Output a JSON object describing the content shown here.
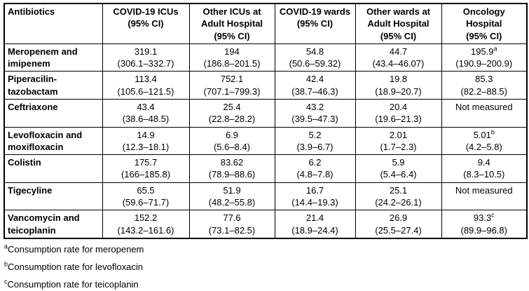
{
  "table": {
    "headers": [
      {
        "label": "Antibiotics",
        "sub": ""
      },
      {
        "label": "COVID-19 ICUs",
        "sub": "(95% CI)"
      },
      {
        "label": "Other ICUs at Adult Hospital",
        "sub": "(95% CI)"
      },
      {
        "label": "COVID-19 wards",
        "sub": "(95% CI)"
      },
      {
        "label": "Other wards at Adult Hospital",
        "sub": "(95% CI)"
      },
      {
        "label": "Oncology Hospital",
        "sub": "(95% CI)"
      }
    ],
    "rows": [
      {
        "name": "Meropenem and imipenem",
        "cells": [
          {
            "value": "319.1",
            "ci": "(306.1–332.7)"
          },
          {
            "value": "194",
            "ci": "(186.8–201.5)"
          },
          {
            "value": "54.8",
            "ci": "(50.6–59.32)"
          },
          {
            "value": "44.7",
            "ci": "(43.4–46.07)"
          },
          {
            "value": "195.9",
            "sup": "a",
            "ci": "(190.9–200.9)"
          }
        ]
      },
      {
        "name": "Piperacilin-tazobactam",
        "cells": [
          {
            "value": "113.4",
            "ci": "(105.6–121.5)"
          },
          {
            "value": "752.1",
            "ci": "(707.1–799.3)"
          },
          {
            "value": "42.4",
            "ci": "(38.7–46.3)"
          },
          {
            "value": "19.8",
            "ci": "(18.9–20.7)"
          },
          {
            "value": "85.3",
            "ci": "(82.2–88.5)"
          }
        ]
      },
      {
        "name": "Ceftriaxone",
        "cells": [
          {
            "value": "43.4",
            "ci": "(38.6–48.5)"
          },
          {
            "value": "25.4",
            "ci": "(22.8–28.2)"
          },
          {
            "value": "43.2",
            "ci": "(39.5–47.3)"
          },
          {
            "value": "20.4",
            "ci": "(19.6–21.3)"
          },
          {
            "value": "Not measured",
            "ci": ""
          }
        ]
      },
      {
        "name": "Levofloxacin and moxifloxacin",
        "cells": [
          {
            "value": "14.9",
            "ci": "(12.3–18.1)"
          },
          {
            "value": "6.9",
            "ci": "(5.6–8.4)"
          },
          {
            "value": "5.2",
            "ci": "(3.9–6.7)"
          },
          {
            "value": "2.01",
            "ci": "(1.7–2.3)"
          },
          {
            "value": "5.01",
            "sup": "b",
            "ci": "(4.2–5.8)"
          }
        ]
      },
      {
        "name": "Colistin",
        "cells": [
          {
            "value": "175.7",
            "ci": "(166–185.8)"
          },
          {
            "value": "83.62",
            "ci": "(78.9–88.6)"
          },
          {
            "value": "6.2",
            "ci": "(4.8–7.8)"
          },
          {
            "value": "5.9",
            "ci": "(5.4–6.4)"
          },
          {
            "value": "9.4",
            "ci": "(8.3–10.5)"
          }
        ]
      },
      {
        "name": "Tigecyline",
        "cells": [
          {
            "value": "65.5",
            "ci": "(59.6–71.7)"
          },
          {
            "value": "51.9",
            "ci": "(48.2–55.8)"
          },
          {
            "value": "16.7",
            "ci": "(14.4–19.3)"
          },
          {
            "value": "25.1",
            "ci": "(24.2–26.1)"
          },
          {
            "value": "Not measured",
            "ci": ""
          }
        ]
      },
      {
        "name": "Vancomycin and teicoplanin",
        "cells": [
          {
            "value": "152.2",
            "ci": "(143.2–161.6)"
          },
          {
            "value": "77.6",
            "ci": "(73.1–82.5)"
          },
          {
            "value": "21.4",
            "ci": "(18.9–24.4)"
          },
          {
            "value": "26.9",
            "ci": "(25.5–27.4)"
          },
          {
            "value": "93.3",
            "sup": "c",
            "ci": "(89.9–96.8)"
          }
        ]
      }
    ]
  },
  "footnotes": [
    {
      "sup": "a",
      "text": "Consumption rate for meropenem"
    },
    {
      "sup": "b",
      "text": "Consumption rate for levofloxacin"
    },
    {
      "sup": "c",
      "text": "Consumption rate for teicoplanin"
    }
  ]
}
